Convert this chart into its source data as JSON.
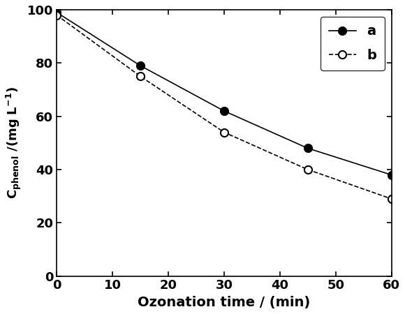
{
  "series_a": {
    "x": [
      0,
      15,
      30,
      45,
      60
    ],
    "y": [
      99,
      79,
      62,
      48,
      38
    ],
    "label": "a",
    "color": "#000000",
    "marker": "o",
    "marker_facecolor": "#000000",
    "linestyle": "-",
    "linewidth": 1.2,
    "markersize": 8
  },
  "series_b": {
    "x": [
      0,
      15,
      30,
      45,
      60
    ],
    "y": [
      98,
      75,
      54,
      40,
      29
    ],
    "label": "b",
    "color": "#000000",
    "marker": "o",
    "marker_facecolor": "#ffffff",
    "linestyle": "--",
    "linewidth": 1.2,
    "markersize": 8
  },
  "xlabel": "Ozonation time / (min)",
  "ylabel_part1": "C",
  "ylabel_sub": "phenol",
  "ylabel_part2": " / (mg L$^{-1}$)",
  "xlim": [
    0,
    60
  ],
  "ylim": [
    0,
    100
  ],
  "xticks": [
    0,
    10,
    20,
    30,
    40,
    50,
    60
  ],
  "yticks": [
    0,
    20,
    40,
    60,
    80,
    100
  ],
  "xlabel_fontsize": 14,
  "ylabel_fontsize": 13,
  "tick_fontsize": 13,
  "legend_fontsize": 14,
  "legend_loc": "upper right",
  "background_color": "#ffffff",
  "figwidth": 5.8,
  "figheight": 4.5,
  "dpi": 100
}
